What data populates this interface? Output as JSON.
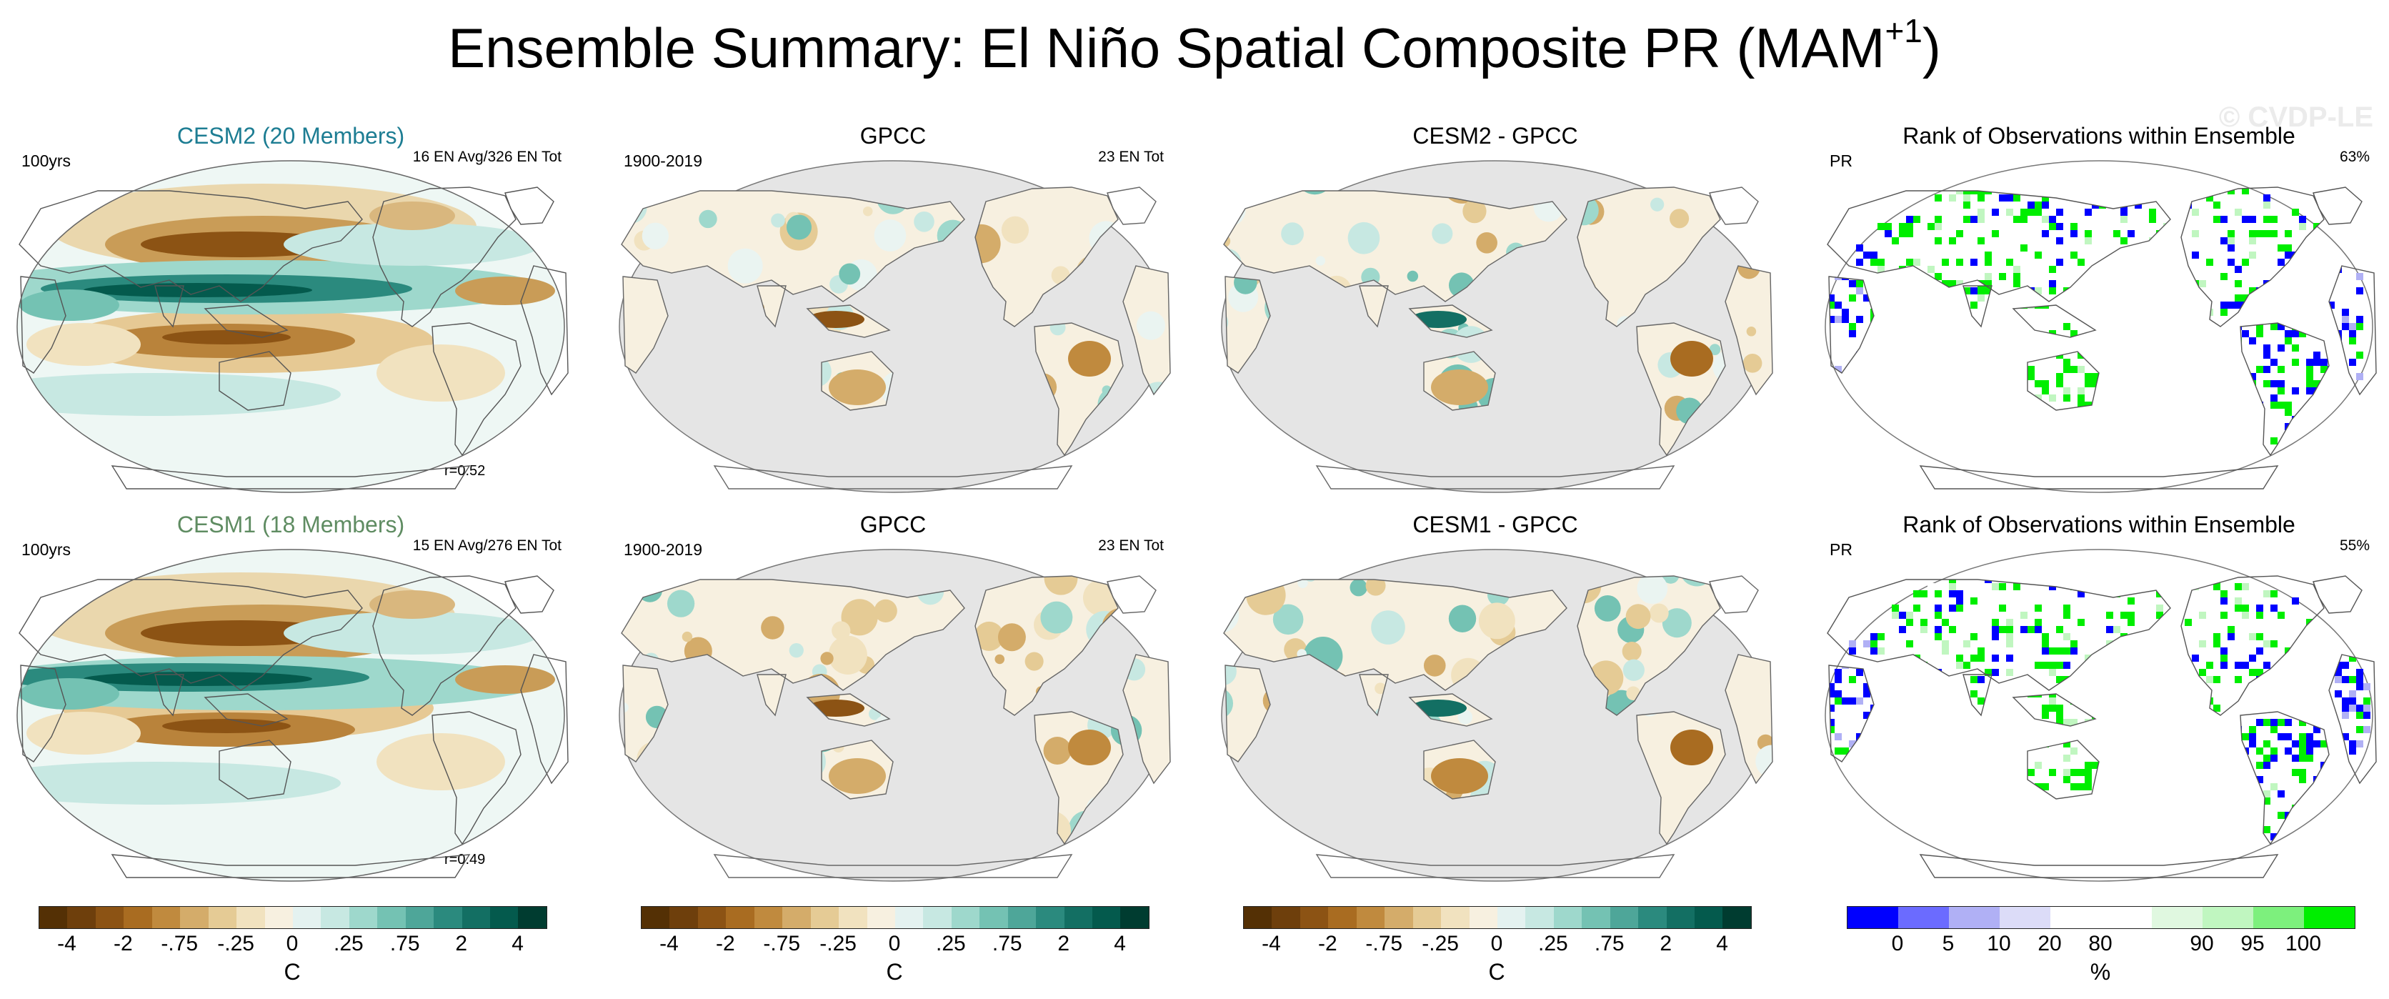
{
  "title": {
    "main": "Ensemble Summary: El Niño Spatial Composite PR (MAM",
    "sup": "+1",
    "close": ")"
  },
  "watermark": "© CVDP-LE",
  "rows": [
    {
      "ensemble": {
        "title": "CESM2 (20 Members)",
        "left": "100yrs",
        "right": "16 EN Avg/326 EN Tot",
        "corr": "r=0.52"
      },
      "obs": {
        "title": "GPCC",
        "left": "1900-2019",
        "right": "23 EN Tot"
      },
      "diff": {
        "title": "CESM2 - GPCC"
      },
      "rank": {
        "title": "Rank of Observations within Ensemble",
        "left": "PR",
        "right": "63%"
      }
    },
    {
      "ensemble": {
        "title": "CESM1 (18 Members)",
        "left": "100yrs",
        "right": "15 EN Avg/276 EN Tot",
        "corr": "r=0.49"
      },
      "obs": {
        "title": "GPCC",
        "left": "1900-2019",
        "right": "23 EN Tot"
      },
      "diff": {
        "title": "CESM1 - GPCC"
      },
      "rank": {
        "title": "Rank of Observations within Ensemble",
        "left": "PR",
        "right": "55%"
      }
    }
  ],
  "colorbars": {
    "diverging": {
      "ticks": [
        "-4",
        "-2",
        "-.75",
        "-.25",
        "0",
        ".25",
        ".75",
        "2",
        "4"
      ],
      "unit": "C",
      "colors": [
        "#543005",
        "#6e3f0c",
        "#8c5314",
        "#a96c21",
        "#c08a3e",
        "#d4ac6a",
        "#e5cb95",
        "#f1e2bf",
        "#f7f0e0",
        "#e4f2f0",
        "#c7e8e2",
        "#9ed8cc",
        "#74c2b3",
        "#4ea699",
        "#2b8a7e",
        "#136f63",
        "#045a4d",
        "#003c30"
      ]
    },
    "rank": {
      "ticks": [
        "0",
        "5",
        "10",
        "20",
        "80",
        "90",
        "95",
        "100"
      ],
      "unit": "%",
      "colors": [
        "#0000ff",
        "#6b6bff",
        "#b0b0f5",
        "#dcdcf8",
        "#ffffff",
        "#ffffff",
        "#e0f8e0",
        "#c0f6c0",
        "#7df07d",
        "#00ee00"
      ]
    }
  },
  "chart_data": [
    {
      "type": "heatmap",
      "title": "CESM2 (20 Members)",
      "annotations": [
        "100yrs",
        "16 EN Avg/326 EN Tot",
        "r=0.52"
      ],
      "colorbar_ticks": [
        -4,
        -2,
        -0.75,
        -0.25,
        0,
        0.25,
        0.75,
        2,
        4
      ],
      "unit": "C"
    },
    {
      "type": "heatmap",
      "title": "GPCC",
      "annotations": [
        "1900-2019",
        "23 EN Tot"
      ],
      "unit": "C"
    },
    {
      "type": "heatmap",
      "title": "CESM2 - GPCC",
      "unit": "C"
    },
    {
      "type": "heatmap",
      "title": "Rank of Observations within Ensemble",
      "annotations": [
        "PR",
        "63%"
      ],
      "colorbar_ticks": [
        0,
        5,
        10,
        20,
        80,
        90,
        95,
        100
      ],
      "unit": "%"
    },
    {
      "type": "heatmap",
      "title": "CESM1 (18 Members)",
      "annotations": [
        "100yrs",
        "15 EN Avg/276 EN Tot",
        "r=0.49"
      ],
      "unit": "C"
    },
    {
      "type": "heatmap",
      "title": "GPCC",
      "annotations": [
        "1900-2019",
        "23 EN Tot"
      ],
      "unit": "C"
    },
    {
      "type": "heatmap",
      "title": "CESM1 - GPCC",
      "unit": "C"
    },
    {
      "type": "heatmap",
      "title": "Rank of Observations within Ensemble",
      "annotations": [
        "PR",
        "55%"
      ],
      "unit": "%"
    }
  ]
}
